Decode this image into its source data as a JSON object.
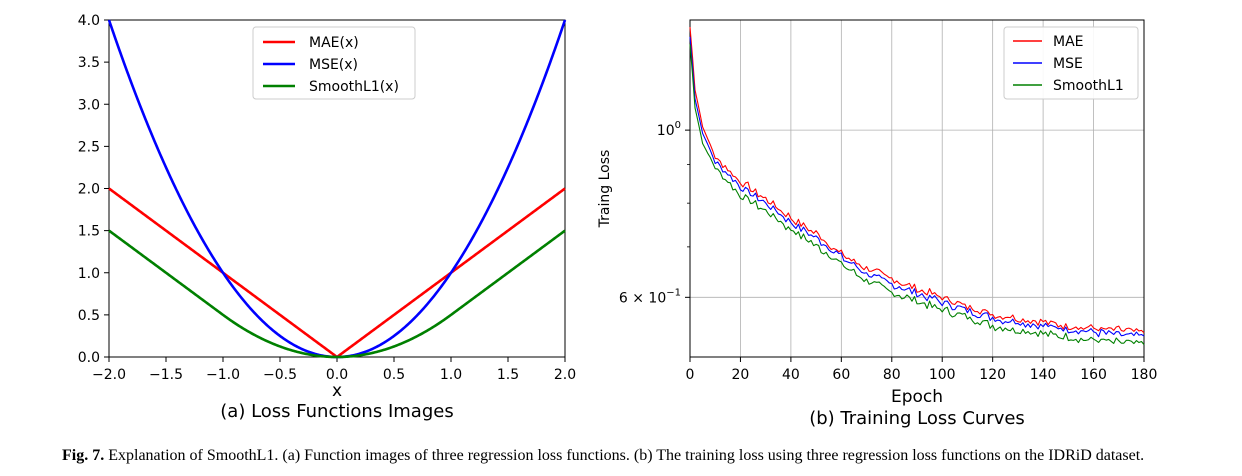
{
  "chart_data": [
    {
      "type": "line",
      "title": "(a) Loss Functions Images",
      "xlabel": "x",
      "ylabel": "",
      "xlim": [
        -2.0,
        2.0
      ],
      "ylim": [
        0.0,
        4.0
      ],
      "xticks": [
        "−2.0",
        "−1.5",
        "−1.0",
        "−0.5",
        "0.0",
        "0.5",
        "1.0",
        "1.5",
        "2.0"
      ],
      "yticks": [
        "0.0",
        "0.5",
        "1.0",
        "1.5",
        "2.0",
        "2.5",
        "3.0",
        "3.5",
        "4.0"
      ],
      "legend_position": "top-center",
      "series": [
        {
          "name": "MAE(x)",
          "color": "#ff0000",
          "x": [
            -2,
            -1.5,
            -1,
            -0.5,
            0,
            0.5,
            1,
            1.5,
            2
          ],
          "y": [
            2,
            1.5,
            1,
            0.5,
            0,
            0.5,
            1,
            1.5,
            2
          ]
        },
        {
          "name": "MSE(x)",
          "color": "#0000ff",
          "x": [
            -2,
            -1.5,
            -1,
            -0.5,
            0,
            0.5,
            1,
            1.5,
            2
          ],
          "y": [
            4,
            2.25,
            1,
            0.25,
            0,
            0.25,
            1,
            2.25,
            4
          ]
        },
        {
          "name": "SmoothL1(x)",
          "color": "#008000",
          "x": [
            -2,
            -1.5,
            -1,
            -0.5,
            0,
            0.5,
            1,
            1.5,
            2
          ],
          "y": [
            1.5,
            1,
            0.5,
            0.125,
            0,
            0.125,
            0.5,
            1,
            1.5
          ]
        }
      ]
    },
    {
      "type": "line",
      "title": "(b) Training Loss Curves",
      "xlabel": "Epoch",
      "ylabel": "Traing Loss",
      "xlim": [
        0,
        180
      ],
      "yscale": "log",
      "ylim": [
        0.5,
        1.4
      ],
      "xticks": [
        "0",
        "20",
        "40",
        "60",
        "80",
        "100",
        "120",
        "140",
        "160",
        "180"
      ],
      "yticks": [
        {
          "value": 1.0,
          "base": "10",
          "exp": "0"
        },
        {
          "value": 0.6,
          "base": "6 × 10",
          "exp": "−1"
        }
      ],
      "legend_position": "top-right",
      "series": [
        {
          "name": "MAE",
          "color": "#ff0000",
          "epochs": [
            0,
            2,
            5,
            10,
            20,
            30,
            40,
            50,
            60,
            70,
            80,
            90,
            100,
            110,
            120,
            130,
            140,
            150,
            160,
            170,
            180
          ],
          "loss": [
            1.37,
            1.13,
            1.01,
            0.92,
            0.855,
            0.81,
            0.765,
            0.73,
            0.685,
            0.655,
            0.635,
            0.615,
            0.6,
            0.583,
            0.57,
            0.563,
            0.557,
            0.55,
            0.545,
            0.543,
            0.54
          ]
        },
        {
          "name": "MSE",
          "color": "#0000ff",
          "epochs": [
            0,
            2,
            5,
            10,
            20,
            30,
            40,
            50,
            60,
            70,
            80,
            90,
            100,
            110,
            120,
            130,
            140,
            150,
            160,
            170,
            180
          ],
          "loss": [
            1.33,
            1.1,
            0.99,
            0.91,
            0.84,
            0.8,
            0.755,
            0.72,
            0.678,
            0.645,
            0.625,
            0.607,
            0.592,
            0.577,
            0.563,
            0.556,
            0.55,
            0.544,
            0.539,
            0.536,
            0.533
          ]
        },
        {
          "name": "SmoothL1",
          "color": "#008000",
          "epochs": [
            0,
            2,
            5,
            10,
            20,
            30,
            40,
            50,
            60,
            70,
            80,
            90,
            100,
            110,
            120,
            130,
            140,
            150,
            160,
            170,
            180
          ],
          "loss": [
            1.3,
            1.07,
            0.96,
            0.89,
            0.82,
            0.78,
            0.738,
            0.703,
            0.664,
            0.632,
            0.61,
            0.593,
            0.578,
            0.564,
            0.55,
            0.543,
            0.537,
            0.531,
            0.526,
            0.523,
            0.52
          ]
        }
      ]
    }
  ],
  "caption": {
    "label": "Fig. 7.",
    "text": "Explanation of SmoothL1. (a) Function images of three regression loss functions. (b) The training loss using three regression loss functions on the IDRiD dataset."
  }
}
